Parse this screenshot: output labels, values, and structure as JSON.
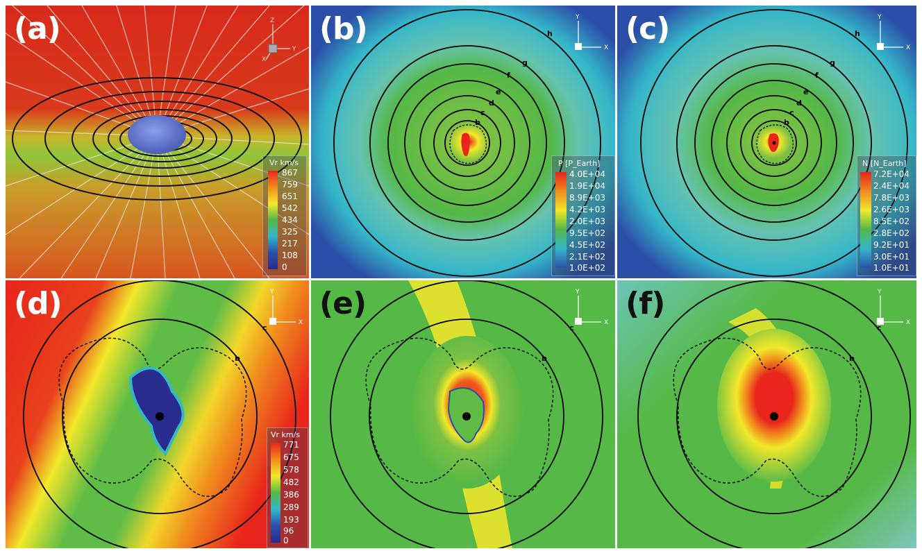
{
  "panels": {
    "a": {
      "label": "(a)",
      "axes": {
        "z": "Z",
        "y": "Y",
        "x": "X"
      }
    },
    "b": {
      "label": "(b)",
      "axes": {
        "y": "Y",
        "x": "X"
      },
      "rings": [
        "b",
        "c",
        "d",
        "e",
        "f",
        "g",
        "h"
      ]
    },
    "c": {
      "label": "(c)",
      "axes": {
        "y": "Y",
        "x": "X"
      },
      "rings": [
        "b",
        "c",
        "d",
        "e",
        "f",
        "g",
        "h"
      ]
    },
    "d": {
      "label": "(d)",
      "axes": {
        "y": "Y",
        "x": "X"
      },
      "rings": [
        "b",
        "c"
      ]
    },
    "e": {
      "label": "(e)",
      "axes": {
        "y": "Y",
        "x": "X"
      },
      "rings": [
        "b",
        "c"
      ]
    },
    "f": {
      "label": "(f)",
      "axes": {
        "y": "Y",
        "x": "X"
      },
      "rings": [
        "b",
        "c"
      ]
    }
  },
  "colorbars": {
    "a": {
      "title": "Vr km/s",
      "ticks": [
        "867",
        "759",
        "651",
        "542",
        "434",
        "325",
        "217",
        "108",
        "0"
      ]
    },
    "b": {
      "title": "P [P_Earth]",
      "ticks": [
        "4.0E+04",
        "1.9E+04",
        "8.9E+03",
        "4.2E+03",
        "2.0E+03",
        "9.5E+02",
        "4.5E+02",
        "2.1E+02",
        "1.0E+02"
      ]
    },
    "c": {
      "title": "N [N_Earth]",
      "ticks": [
        "7.2E+04",
        "2.4E+04",
        "7.8E+03",
        "2.6E+03",
        "8.5E+02",
        "2.8E+02",
        "9.2E+01",
        "3.0E+01",
        "1.0E+01"
      ]
    },
    "d": {
      "title": "Vr km/s",
      "ticks": [
        "771",
        "675",
        "578",
        "482",
        "386",
        "289",
        "193",
        "96",
        "0"
      ]
    }
  },
  "colors": {
    "red": "#e8261c",
    "orange": "#f08a1e",
    "yellow": "#f2e82a",
    "green": "#54b848",
    "teal": "#35b6c9",
    "blue": "#2b4fa8",
    "navy": "#2a2b8f"
  }
}
